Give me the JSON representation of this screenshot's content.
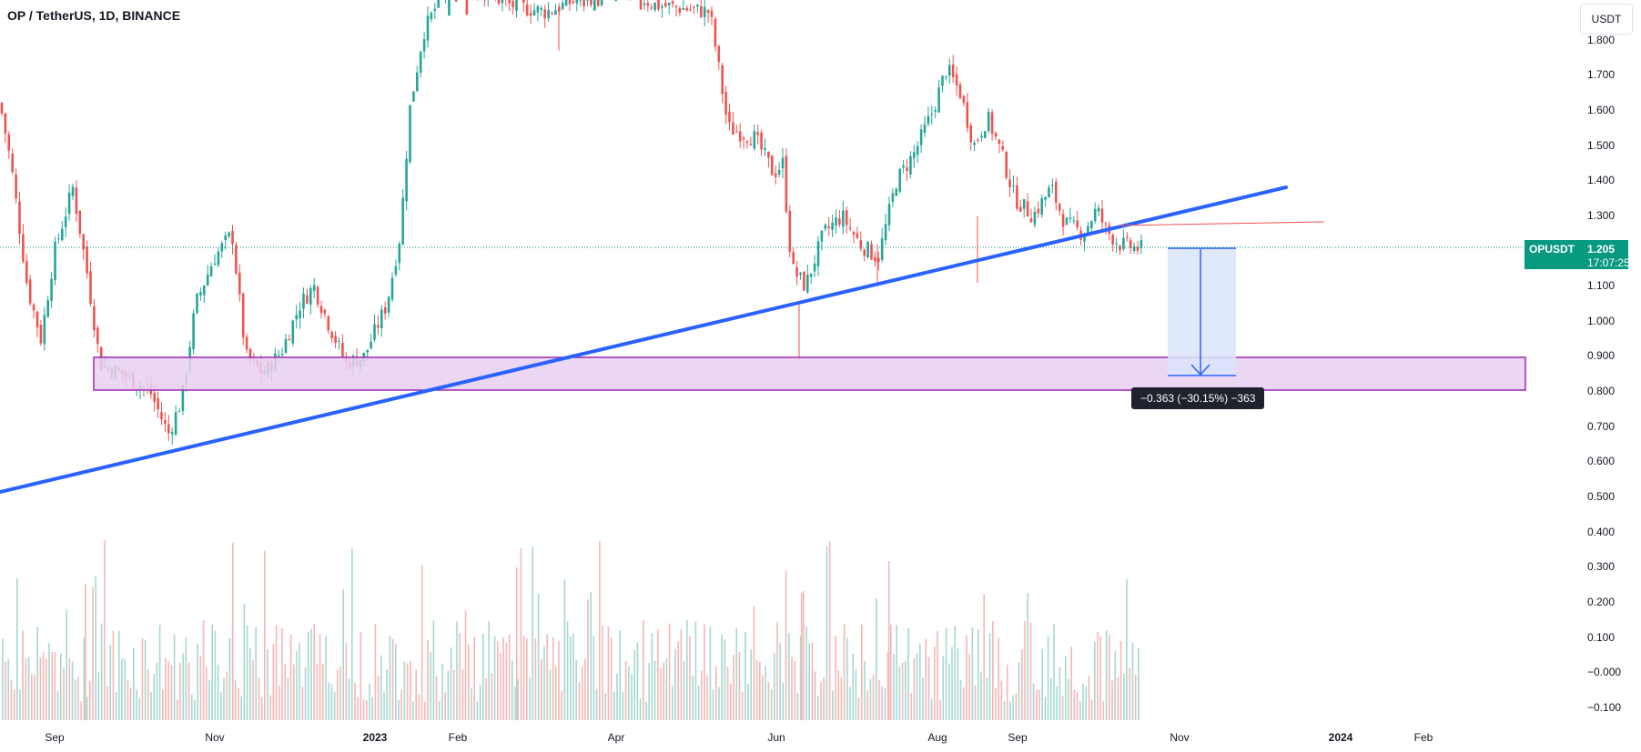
{
  "header": {
    "title": "OP / TetherUS, 1D, BINANCE",
    "currency": "USDT"
  },
  "price_tag": {
    "symbol": "OPUSDT",
    "price": "1.205",
    "countdown": "17:07:25"
  },
  "measure": {
    "label": "−0.363 (−30.15%) −363"
  },
  "colors": {
    "up": "#26a69a",
    "down": "#ef5350",
    "trendline": "#2962ff",
    "zone_fill": "#e8d0f2",
    "zone_border": "#9c27b0",
    "measure_fill": "#dbe5fb",
    "measure_line": "#2962ff",
    "ray": "#ef5350"
  },
  "chart_data": {
    "type": "candlestick",
    "title": "OP / TetherUS, 1D, BINANCE",
    "y_axis": {
      "range": [
        -0.15,
        1.85
      ],
      "ticks": [
        "1.800",
        "1.700",
        "1.600",
        "1.500",
        "1.400",
        "1.300",
        "1.200",
        "1.100",
        "1.000",
        "0.900",
        "0.800",
        "0.700",
        "0.600",
        "0.500",
        "0.400",
        "0.300",
        "0.200",
        "0.100",
        "−0.000",
        "−0.100"
      ]
    },
    "x_axis": {
      "ticks": [
        "Sep",
        "Nov",
        "2023",
        "Feb",
        "Apr",
        "Jun",
        "Aug",
        "Sep",
        "Nov",
        "2024",
        "Feb"
      ]
    },
    "price_path": [
      [
        0,
        1.62
      ],
      [
        12,
        1.45
      ],
      [
        30,
        1.1
      ],
      [
        45,
        0.95
      ],
      [
        60,
        1.2
      ],
      [
        80,
        1.38
      ],
      [
        95,
        1.15
      ],
      [
        110,
        0.88
      ],
      [
        135,
        0.85
      ],
      [
        165,
        0.8
      ],
      [
        185,
        0.68
      ],
      [
        200,
        0.78
      ],
      [
        215,
        1.05
      ],
      [
        235,
        1.18
      ],
      [
        255,
        1.25
      ],
      [
        270,
        0.9
      ],
      [
        290,
        0.85
      ],
      [
        310,
        0.92
      ],
      [
        330,
        1.05
      ],
      [
        345,
        1.1
      ],
      [
        360,
        1.0
      ],
      [
        380,
        0.88
      ],
      [
        400,
        0.9
      ],
      [
        425,
        1.05
      ],
      [
        440,
        1.25
      ],
      [
        450,
        1.6
      ],
      [
        465,
        1.82
      ],
      [
        480,
        1.9
      ],
      [
        500,
        2.0
      ],
      [
        520,
        1.95
      ],
      [
        560,
        1.9
      ],
      [
        600,
        1.88
      ],
      [
        640,
        1.92
      ],
      [
        680,
        1.95
      ],
      [
        720,
        1.9
      ],
      [
        780,
        1.88
      ],
      [
        800,
        1.55
      ],
      [
        830,
        1.52
      ],
      [
        850,
        1.42
      ],
      [
        860,
        1.45
      ],
      [
        870,
        1.15
      ],
      [
        885,
        1.1
      ],
      [
        905,
        1.25
      ],
      [
        925,
        1.3
      ],
      [
        945,
        1.22
      ],
      [
        965,
        1.18
      ],
      [
        985,
        1.4
      ],
      [
        1005,
        1.48
      ],
      [
        1025,
        1.6
      ],
      [
        1040,
        1.72
      ],
      [
        1055,
        1.65
      ],
      [
        1070,
        1.5
      ],
      [
        1085,
        1.58
      ],
      [
        1100,
        1.48
      ],
      [
        1115,
        1.35
      ],
      [
        1135,
        1.3
      ],
      [
        1155,
        1.38
      ],
      [
        1170,
        1.28
      ],
      [
        1190,
        1.25
      ],
      [
        1205,
        1.32
      ],
      [
        1215,
        1.26
      ],
      [
        1230,
        1.22
      ],
      [
        1245,
        1.21
      ],
      [
        1257,
        1.205
      ]
    ],
    "volume_range": [
      -0.15,
      0.36
    ],
    "trendline": {
      "from": [
        "start",
        0.505
      ],
      "to": [
        "Dec 2023",
        1.38
      ]
    },
    "support_zone": {
      "low": 0.8,
      "high": 0.895
    },
    "measure_range": {
      "from": 1.205,
      "to": 0.842,
      "change": -0.363,
      "percent": -30.15
    },
    "horizontal_ray": {
      "from": 1.27,
      "to": 1.28
    },
    "last_price": 1.205
  }
}
